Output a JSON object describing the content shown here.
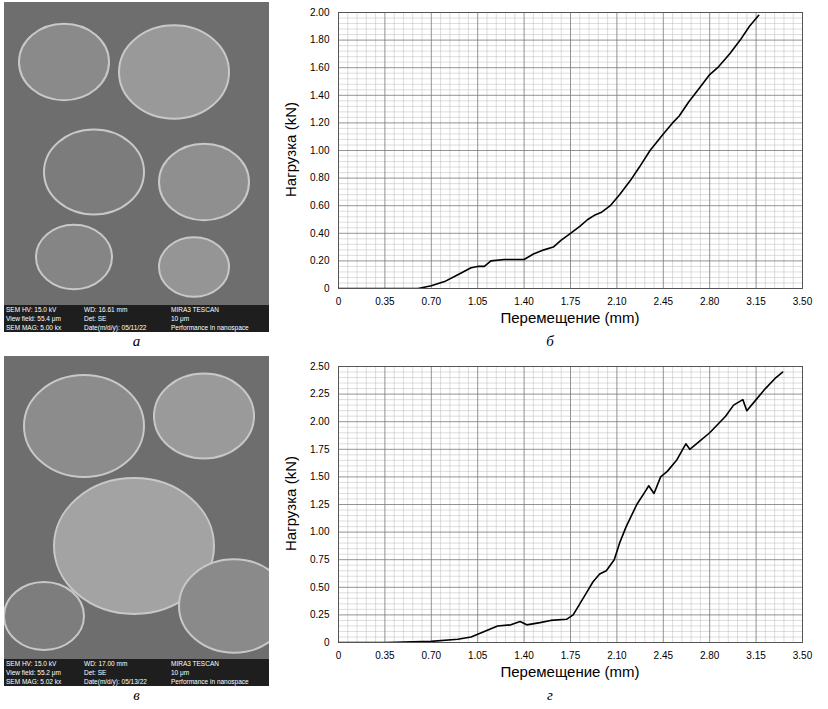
{
  "images": [
    {
      "panel_label": "а",
      "info": [
        [
          "SEM HV: 15.0 kV",
          "WD: 16.61 mm",
          "MIRA3 TESCAN"
        ],
        [
          "View field: 55.4 μm",
          "Det: SE",
          "10 μm"
        ],
        [
          "SEM MAG: 5.00 kx",
          "Date(m/d/y): 05/11/22",
          "Performance in nanospace"
        ]
      ]
    },
    {
      "panel_label": "в",
      "info": [
        [
          "SEM HV: 15.0 kV",
          "WD: 17.00 mm",
          "MIRA3 TESCAN"
        ],
        [
          "View field: 55.2 μm",
          "Det: SE",
          "10 μm"
        ],
        [
          "SEM MAG: 5.02 kx",
          "Date(m/d/y): 05/13/22",
          "Performance in nanospace"
        ]
      ]
    }
  ],
  "chart_data": [
    {
      "type": "line",
      "panel_label": "б",
      "x_label": "Перемещение (mm)",
      "y_label": "Нагрузка (kN)",
      "grid": true,
      "color": "#000000",
      "xlim": [
        0,
        3.5
      ],
      "xticks": [
        0,
        0.35,
        {
          "value": 0.7,
          "label": "0.70"
        },
        1.05,
        {
          "value": 1.4,
          "label": "1.40"
        },
        1.75,
        {
          "value": 2.1,
          "label": "2.10"
        },
        2.45,
        {
          "value": 2.8,
          "label": "2.80"
        },
        3.15,
        {
          "value": 3.5,
          "label": "3.50"
        }
      ],
      "ylim": [
        0,
        2.0
      ],
      "yticks": [
        0,
        {
          "value": 0.2,
          "label": "0.20"
        },
        {
          "value": 0.4,
          "label": "0.40"
        },
        {
          "value": 0.6,
          "label": "0.60"
        },
        {
          "value": 0.8,
          "label": "0.80"
        },
        {
          "value": 1.0,
          "label": "1.00"
        },
        {
          "value": 1.2,
          "label": "1.20"
        },
        {
          "value": 1.4,
          "label": "1.40"
        },
        {
          "value": 1.6,
          "label": "1.60"
        },
        {
          "value": 1.8,
          "label": "1.80"
        },
        {
          "value": 2.0,
          "label": "2.00"
        }
      ],
      "x": [
        0,
        0.35,
        0.6,
        0.7,
        0.8,
        0.9,
        1.0,
        1.05,
        1.1,
        1.15,
        1.25,
        1.4,
        1.47,
        1.55,
        1.62,
        1.68,
        1.75,
        1.82,
        1.88,
        1.93,
        1.98,
        2.05,
        2.12,
        2.2,
        2.27,
        2.35,
        2.45,
        2.52,
        2.57,
        2.64,
        2.72,
        2.8,
        2.86,
        2.95,
        3.03,
        3.1,
        3.17
      ],
      "values": [
        0,
        0,
        0,
        0.02,
        0.05,
        0.1,
        0.15,
        0.16,
        0.16,
        0.2,
        0.21,
        0.21,
        0.25,
        0.28,
        0.3,
        0.35,
        0.4,
        0.45,
        0.5,
        0.53,
        0.55,
        0.6,
        0.68,
        0.78,
        0.88,
        1.0,
        1.12,
        1.2,
        1.25,
        1.35,
        1.45,
        1.55,
        1.6,
        1.7,
        1.8,
        1.9,
        1.98
      ]
    },
    {
      "type": "line",
      "panel_label": "г",
      "x_label": "Перемещение (mm)",
      "y_label": "Нагрузка (kN)",
      "grid": true,
      "color": "#000000",
      "xlim": [
        0,
        3.5
      ],
      "xticks": [
        0,
        0.35,
        {
          "value": 0.7,
          "label": "0.70"
        },
        1.05,
        {
          "value": 1.4,
          "label": "1.40"
        },
        1.75,
        {
          "value": 2.1,
          "label": "2.10"
        },
        2.45,
        {
          "value": 2.8,
          "label": "2.80"
        },
        3.15,
        {
          "value": 3.5,
          "label": "3.50"
        }
      ],
      "ylim": [
        0,
        2.5
      ],
      "yticks": [
        0,
        0.25,
        {
          "value": 0.5,
          "label": "0.50"
        },
        0.75,
        {
          "value": 1.0,
          "label": "1.00"
        },
        1.25,
        {
          "value": 1.5,
          "label": "1.50"
        },
        1.75,
        {
          "value": 2.0,
          "label": "2.00"
        },
        2.25,
        {
          "value": 2.5,
          "label": "2.50"
        }
      ],
      "x": [
        0,
        0.35,
        0.7,
        0.9,
        1.0,
        1.1,
        1.2,
        1.3,
        1.37,
        1.42,
        1.52,
        1.6,
        1.72,
        1.77,
        1.82,
        1.87,
        1.92,
        1.97,
        2.02,
        2.08,
        2.12,
        2.17,
        2.25,
        2.32,
        2.34,
        2.38,
        2.43,
        2.48,
        2.55,
        2.62,
        2.65,
        2.72,
        2.8,
        2.88,
        2.92,
        2.98,
        3.05,
        3.08,
        3.15,
        3.22,
        3.3,
        3.35
      ],
      "values": [
        0,
        0,
        0.01,
        0.03,
        0.05,
        0.1,
        0.15,
        0.16,
        0.19,
        0.16,
        0.18,
        0.2,
        0.21,
        0.25,
        0.35,
        0.45,
        0.55,
        0.62,
        0.65,
        0.75,
        0.9,
        1.05,
        1.25,
        1.38,
        1.42,
        1.35,
        1.5,
        1.55,
        1.65,
        1.8,
        1.75,
        1.82,
        1.9,
        2.0,
        2.05,
        2.15,
        2.2,
        2.1,
        2.2,
        2.3,
        2.4,
        2.45
      ]
    }
  ]
}
